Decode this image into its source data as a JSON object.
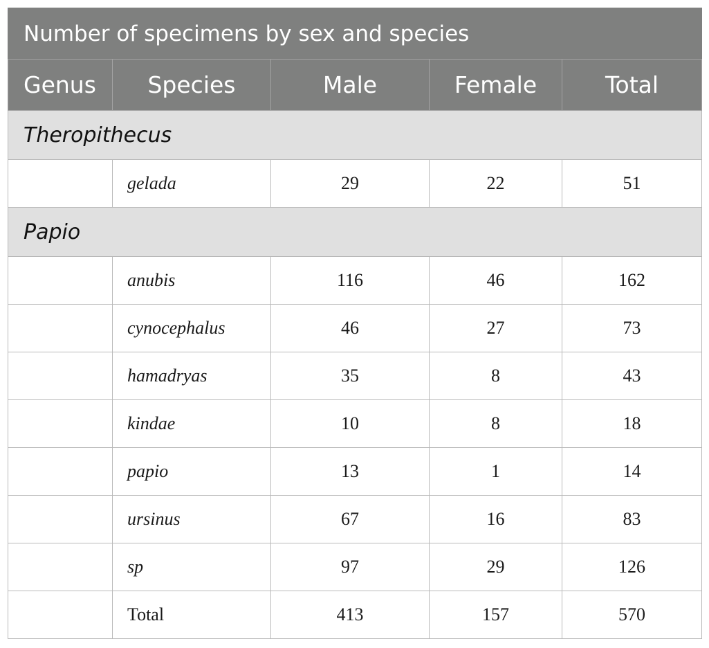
{
  "table": {
    "title": "Number of specimens by sex and species",
    "headers": {
      "genus": "Genus",
      "species": "Species",
      "male": "Male",
      "female": "Female",
      "total": "Total"
    },
    "groups": [
      {
        "genus": "Theropithecus",
        "rows": [
          {
            "species": "gelada",
            "male": "29",
            "female": "22",
            "total": "51"
          }
        ]
      },
      {
        "genus": "Papio",
        "rows": [
          {
            "species": "anubis",
            "male": "116",
            "female": "46",
            "total": "162"
          },
          {
            "species": "cynocephalus",
            "male": "46",
            "female": "27",
            "total": "73"
          },
          {
            "species": "hamadryas",
            "male": "35",
            "female": "8",
            "total": "43"
          },
          {
            "species": "kindae",
            "male": "10",
            "female": "8",
            "total": "18"
          },
          {
            "species": "papio",
            "male": "13",
            "female": "1",
            "total": "14"
          },
          {
            "species": "ursinus",
            "male": "67",
            "female": "16",
            "total": "83"
          },
          {
            "species": "sp",
            "male": "97",
            "female": "29",
            "total": "126"
          }
        ]
      }
    ],
    "total_row": {
      "label": "Total",
      "male": "413",
      "female": "157",
      "total": "570"
    }
  }
}
